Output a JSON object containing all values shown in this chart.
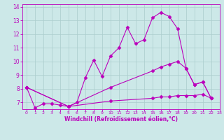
{
  "line1_x": [
    0,
    1,
    2,
    3,
    4,
    5,
    6,
    7,
    8,
    9,
    10,
    11,
    12,
    13,
    14,
    15,
    16,
    17,
    18,
    19,
    20,
    21,
    22
  ],
  "line1_y": [
    8.1,
    6.6,
    6.9,
    6.9,
    6.8,
    6.7,
    7.0,
    8.8,
    10.1,
    8.9,
    10.4,
    11.0,
    12.5,
    11.3,
    11.6,
    13.2,
    13.6,
    13.3,
    12.4,
    9.5,
    8.3,
    8.5,
    7.3
  ],
  "line2_x": [
    0,
    5,
    10,
    15,
    16,
    17,
    18,
    19,
    20,
    21,
    22
  ],
  "line2_y": [
    8.1,
    6.7,
    8.1,
    9.3,
    9.6,
    9.8,
    10.0,
    9.5,
    8.3,
    8.5,
    7.3
  ],
  "line3_x": [
    0,
    5,
    10,
    15,
    16,
    17,
    18,
    19,
    20,
    21,
    22
  ],
  "line3_y": [
    8.1,
    6.7,
    7.1,
    7.3,
    7.4,
    7.4,
    7.5,
    7.5,
    7.5,
    7.6,
    7.3
  ],
  "line_color": "#bb00bb",
  "bg_color": "#cce8e8",
  "grid_color": "#aacccc",
  "xlabel": "Windchill (Refroidissement éolien,°C)",
  "xlim": [
    -0.5,
    23
  ],
  "ylim": [
    6.5,
    14.2
  ],
  "xticks": [
    0,
    1,
    2,
    3,
    4,
    5,
    6,
    7,
    8,
    9,
    10,
    11,
    12,
    13,
    14,
    15,
    16,
    17,
    18,
    19,
    20,
    21,
    22,
    23
  ],
  "yticks": [
    7,
    8,
    9,
    10,
    11,
    12,
    13,
    14
  ],
  "marker": "D",
  "markersize": 2.5,
  "linewidth": 0.8
}
